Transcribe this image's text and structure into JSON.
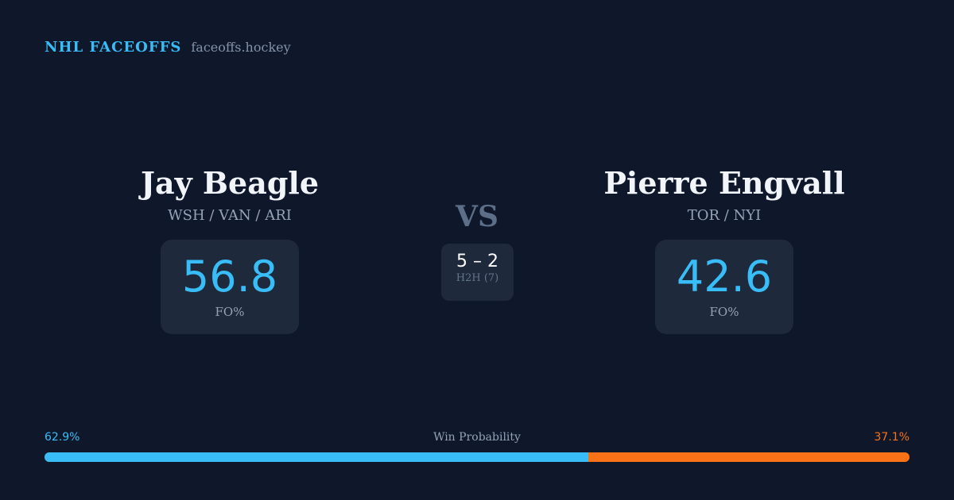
{
  "brand": {
    "title": "NHL FACEOFFS",
    "site": "faceoffs.hockey"
  },
  "player1": {
    "name": "Jay Beagle",
    "teams": "WSH / VAN / ARI",
    "fo_pct": "56.8",
    "fo_label": "FO%"
  },
  "player2": {
    "name": "Pierre Engvall",
    "teams": "TOR / NYI",
    "fo_pct": "42.6",
    "fo_label": "FO%"
  },
  "vs": "VS",
  "h2h": {
    "score": "5 – 2",
    "label": "H2H (7)"
  },
  "win_probability": {
    "label": "Win Probability",
    "left": "62.9%",
    "right": "37.1%",
    "left_value": 62.9,
    "right_value": 37.1
  },
  "colors": {
    "background": "#0f172a",
    "accent": "#38bdf8",
    "opponent": "#f97316",
    "card": "#1e293b"
  }
}
